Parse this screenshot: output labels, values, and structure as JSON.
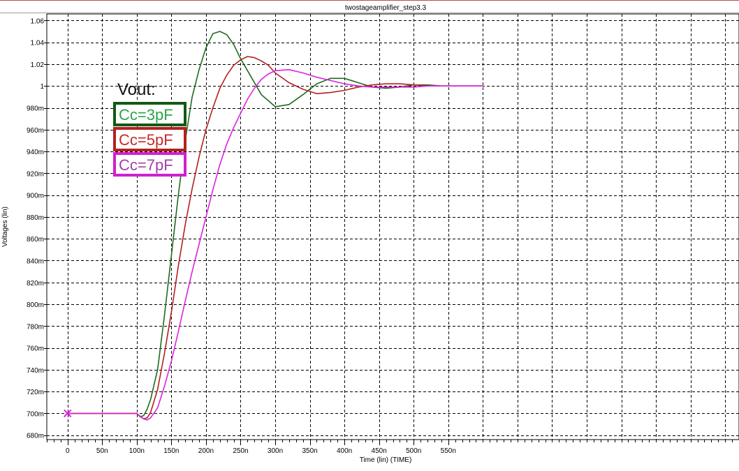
{
  "chart_data": {
    "type": "line",
    "title": "twostageamplifier_step3.3",
    "xlabel": "Time (lin) (TIME)",
    "ylabel": "Voltages (lin)",
    "xlim": [
      -30,
      970
    ],
    "ylim": [
      676,
      1066
    ],
    "x_ticks": [
      {
        "v": 0,
        "label": "0"
      },
      {
        "v": 50,
        "label": "50n"
      },
      {
        "v": 100,
        "label": "100n"
      },
      {
        "v": 150,
        "label": "150n"
      },
      {
        "v": 200,
        "label": "200n"
      },
      {
        "v": 250,
        "label": "250n"
      },
      {
        "v": 300,
        "label": "300n"
      },
      {
        "v": 350,
        "label": "350n"
      },
      {
        "v": 400,
        "label": "400n"
      },
      {
        "v": 450,
        "label": "450n"
      },
      {
        "v": 500,
        "label": "500n"
      },
      {
        "v": 550,
        "label": "550n"
      }
    ],
    "y_ticks": [
      {
        "v": 680,
        "label": "680m"
      },
      {
        "v": 700,
        "label": "700m"
      },
      {
        "v": 720,
        "label": "720m"
      },
      {
        "v": 740,
        "label": "740m"
      },
      {
        "v": 760,
        "label": "760m"
      },
      {
        "v": 780,
        "label": "780m"
      },
      {
        "v": 800,
        "label": "800m"
      },
      {
        "v": 820,
        "label": "820m"
      },
      {
        "v": 840,
        "label": "840m"
      },
      {
        "v": 860,
        "label": "860m"
      },
      {
        "v": 880,
        "label": "880m"
      },
      {
        "v": 900,
        "label": "900m"
      },
      {
        "v": 920,
        "label": "920m"
      },
      {
        "v": 940,
        "label": "940m"
      },
      {
        "v": 960,
        "label": "960m"
      },
      {
        "v": 980,
        "label": "980m"
      },
      {
        "v": 1000,
        "label": "1"
      },
      {
        "v": 1020,
        "label": "1.02"
      },
      {
        "v": 1040,
        "label": "1.04"
      },
      {
        "v": 1060,
        "label": "1.06"
      }
    ],
    "grid": true,
    "annotation": "Vout:",
    "series": [
      {
        "name": "Cc=3pF",
        "color": "#1e6b1e",
        "box_color": "#0f5a14",
        "text_color": "#2aa44a",
        "x": [
          0,
          100,
          105,
          110,
          115,
          120,
          130,
          140,
          150,
          160,
          170,
          180,
          190,
          200,
          210,
          220,
          230,
          240,
          250,
          260,
          280,
          300,
          320,
          340,
          360,
          380,
          400,
          420,
          440,
          460,
          480,
          500,
          520,
          540,
          560,
          600
        ],
        "y": [
          700,
          700,
          697,
          698,
          704,
          713,
          740,
          790,
          845,
          900,
          950,
          990,
          1015,
          1035,
          1048,
          1050,
          1047,
          1038,
          1025,
          1014,
          992,
          981,
          983,
          992,
          1002,
          1007,
          1007,
          1003,
          999,
          998,
          999,
          1001,
          1001,
          1000,
          1000,
          1000
        ]
      },
      {
        "name": "Cc=5pF",
        "color": "#b32020",
        "box_color": "#b32020",
        "text_color": "#c82828",
        "x": [
          0,
          100,
          105,
          110,
          115,
          120,
          130,
          140,
          150,
          160,
          170,
          180,
          190,
          200,
          210,
          220,
          230,
          240,
          250,
          260,
          270,
          280,
          290,
          300,
          320,
          340,
          360,
          380,
          400,
          420,
          440,
          460,
          480,
          500,
          520,
          540,
          560,
          600
        ],
        "y": [
          700,
          700,
          697,
          695,
          696,
          701,
          722,
          755,
          793,
          835,
          873,
          906,
          935,
          960,
          980,
          998,
          1010,
          1019,
          1024,
          1027,
          1026,
          1023,
          1019,
          1012,
          1003,
          997,
          993,
          994,
          996,
          999,
          1001,
          1002,
          1002,
          1001,
          1000,
          1000,
          1000,
          1000
        ]
      },
      {
        "name": "Cc=7pF",
        "color": "#dd22dd",
        "box_color": "#d020d0",
        "text_color": "#a040a8",
        "x": [
          0,
          100,
          110,
          115,
          120,
          130,
          140,
          150,
          160,
          170,
          180,
          190,
          200,
          210,
          220,
          230,
          240,
          250,
          260,
          270,
          280,
          290,
          300,
          320,
          340,
          360,
          380,
          400,
          420,
          440,
          460,
          480,
          500,
          520,
          540,
          560,
          600
        ],
        "y": [
          700,
          700,
          695,
          694,
          696,
          705,
          725,
          748,
          775,
          803,
          830,
          855,
          880,
          905,
          928,
          947,
          962,
          975,
          988,
          998,
          1006,
          1011,
          1014,
          1015,
          1012,
          1008,
          1005,
          1002,
          1000,
          999,
          999,
          999,
          999,
          1000,
          1000,
          1000,
          1000
        ]
      }
    ]
  }
}
